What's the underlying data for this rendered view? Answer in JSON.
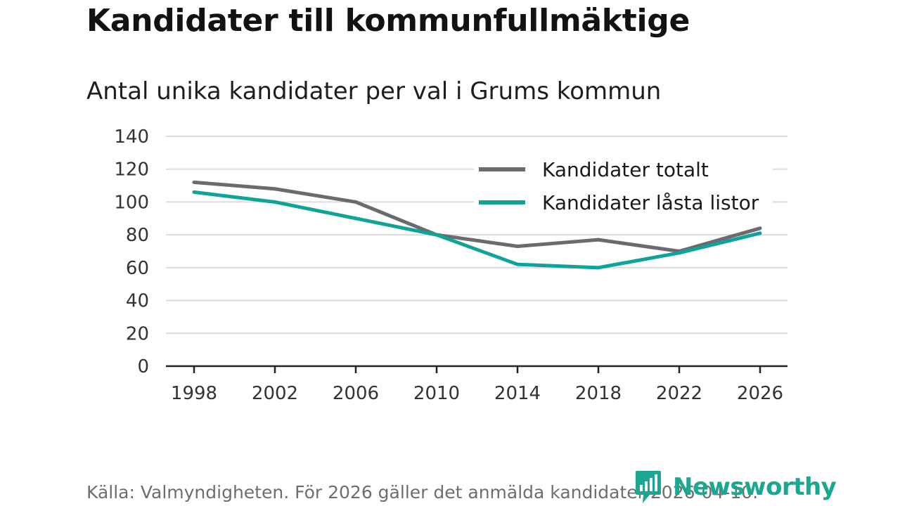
{
  "header": {
    "title": "Kandidater till kommunfullmäktige",
    "subtitle": "Antal unika kandidater per val i Grums kommun"
  },
  "chart_data": {
    "type": "line",
    "title": "Kandidater till kommunfullmäktige",
    "subtitle": "Antal unika kandidater per val i Grums kommun",
    "xlabel": "",
    "ylabel": "",
    "categories": [
      "1998",
      "2002",
      "2006",
      "2010",
      "2014",
      "2018",
      "2022",
      "2026"
    ],
    "ylim": [
      0,
      140
    ],
    "yticks": [
      0,
      20,
      40,
      60,
      80,
      100,
      120,
      140
    ],
    "grid": true,
    "legend_position": "top-right",
    "series": [
      {
        "name": "Kandidater totalt",
        "color": "#6b6a70",
        "values": [
          112,
          108,
          100,
          80,
          73,
          77,
          70,
          84
        ]
      },
      {
        "name": "Kandidater låsta listor",
        "color": "#0fa39a",
        "values": [
          106,
          100,
          90,
          80,
          62,
          60,
          69,
          81
        ]
      }
    ]
  },
  "footer": {
    "source": "Källa: Valmyndigheten. För 2026 gäller det anmälda kandidater 2026-04-10.",
    "brand": "Newsworthy",
    "brand_icon": "newsworthy-logo-icon",
    "brand_color": "#1aa890"
  }
}
